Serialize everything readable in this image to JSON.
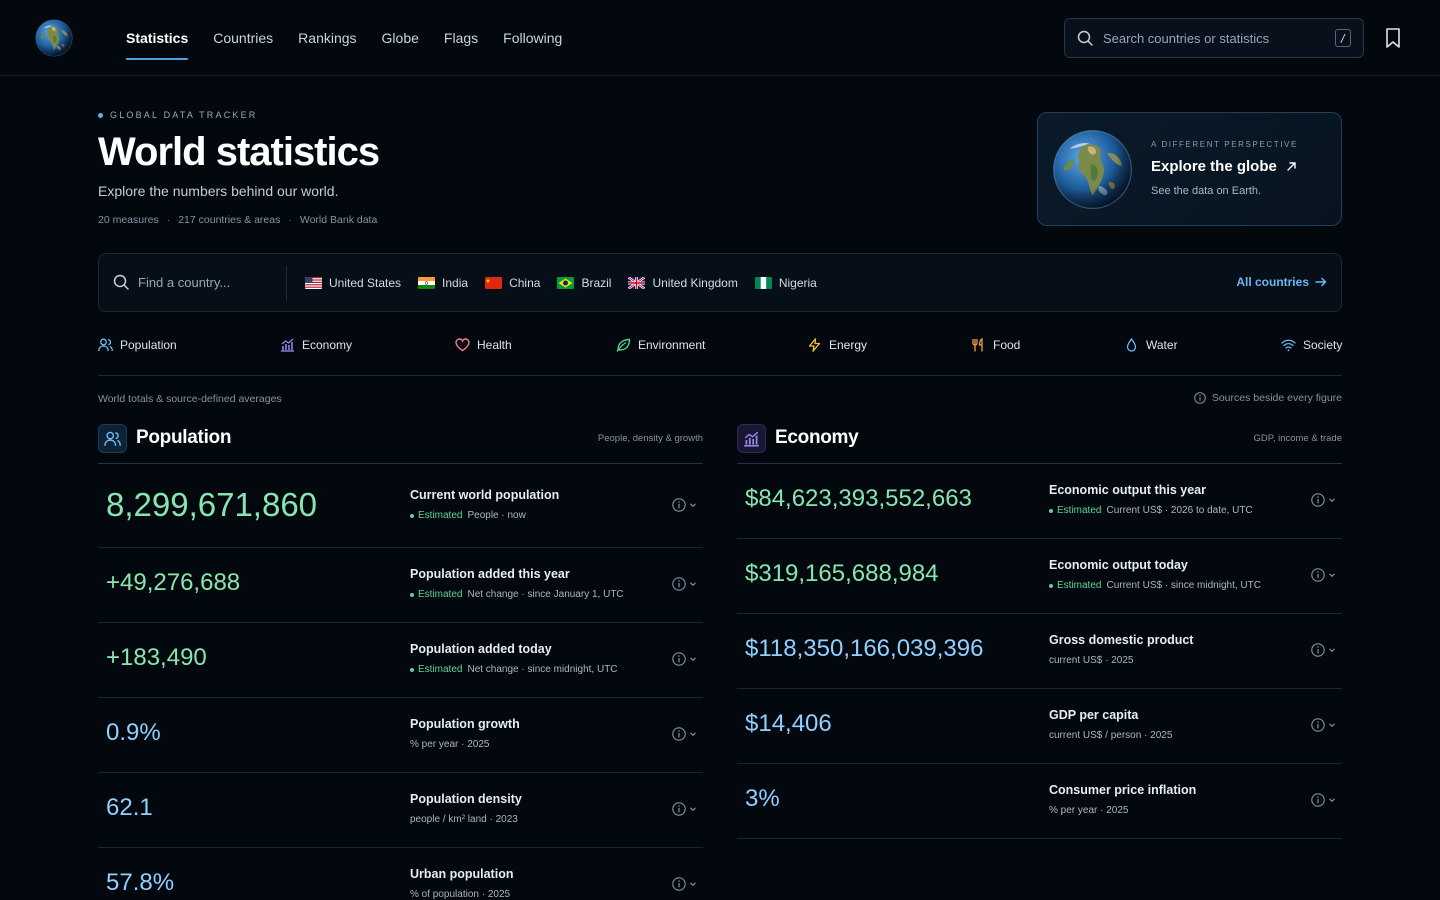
{
  "nav": {
    "items": [
      {
        "label": "Statistics",
        "active": true
      },
      {
        "label": "Countries",
        "active": false
      },
      {
        "label": "Rankings",
        "active": false
      },
      {
        "label": "Globe",
        "active": false
      },
      {
        "label": "Flags",
        "active": false
      },
      {
        "label": "Following",
        "active": false
      }
    ],
    "search_placeholder": "Search countries or statistics",
    "search_shortcut": "/"
  },
  "hero": {
    "eyebrow": "GLOBAL DATA TRACKER",
    "title": "World statistics",
    "subtitle": "Explore the numbers behind our world.",
    "meta": [
      "20 measures",
      "217 countries & areas",
      "World Bank data"
    ]
  },
  "globe_card": {
    "eyebrow": "A DIFFERENT PERSPECTIVE",
    "title": "Explore the globe",
    "subtitle": "See the data on Earth."
  },
  "country_bar": {
    "search_placeholder": "Find a country...",
    "chips": [
      "United States",
      "India",
      "China",
      "Brazil",
      "United Kingdom",
      "Nigeria"
    ],
    "all_label": "All countries"
  },
  "categories": [
    "Population",
    "Economy",
    "Health",
    "Environment",
    "Energy",
    "Food",
    "Water",
    "Society"
  ],
  "notes": {
    "left": "World totals & source-defined averages",
    "right": "Sources beside every figure"
  },
  "population": {
    "title": "Population",
    "tag": "People, density & growth",
    "rows": [
      {
        "value": "8,299,671,860",
        "label": "Current world population",
        "estimated": "Estimated",
        "sub": "People · now"
      },
      {
        "value": "+49,276,688",
        "label": "Population added this year",
        "estimated": "Estimated",
        "sub": "Net change · since January 1, UTC"
      },
      {
        "value": "+183,490",
        "label": "Population added today",
        "estimated": "Estimated",
        "sub": "Net change · since midnight, UTC"
      },
      {
        "value": "0.9%",
        "label": "Population growth",
        "sub": "% per year · 2025"
      },
      {
        "value": "62.1",
        "label": "Population density",
        "sub": "people / km² land · 2023"
      },
      {
        "value": "57.8%",
        "label": "Urban population",
        "sub": "% of population · 2025"
      }
    ]
  },
  "economy": {
    "title": "Economy",
    "tag": "GDP, income & trade",
    "rows": [
      {
        "value": "$84,623,393,552,663",
        "label": "Economic output this year",
        "estimated": "Estimated",
        "sub": "Current US$ · 2026 to date, UTC"
      },
      {
        "value": "$319,165,688,984",
        "label": "Economic output today",
        "estimated": "Estimated",
        "sub": "Current US$ · since midnight, UTC"
      },
      {
        "value": "$118,350,166,039,396",
        "label": "Gross domestic product",
        "sub": "current US$ · 2025"
      },
      {
        "value": "$14,406",
        "label": "GDP per capita",
        "sub": "current US$ / person · 2025"
      },
      {
        "value": "3%",
        "label": "Consumer price inflation",
        "sub": "% per year · 2025"
      }
    ]
  },
  "colors": {
    "accent": "#4aa3e0",
    "value_blue": "#8fd0ff",
    "value_green": "#86e6b0",
    "estimated": "#5fd394"
  }
}
